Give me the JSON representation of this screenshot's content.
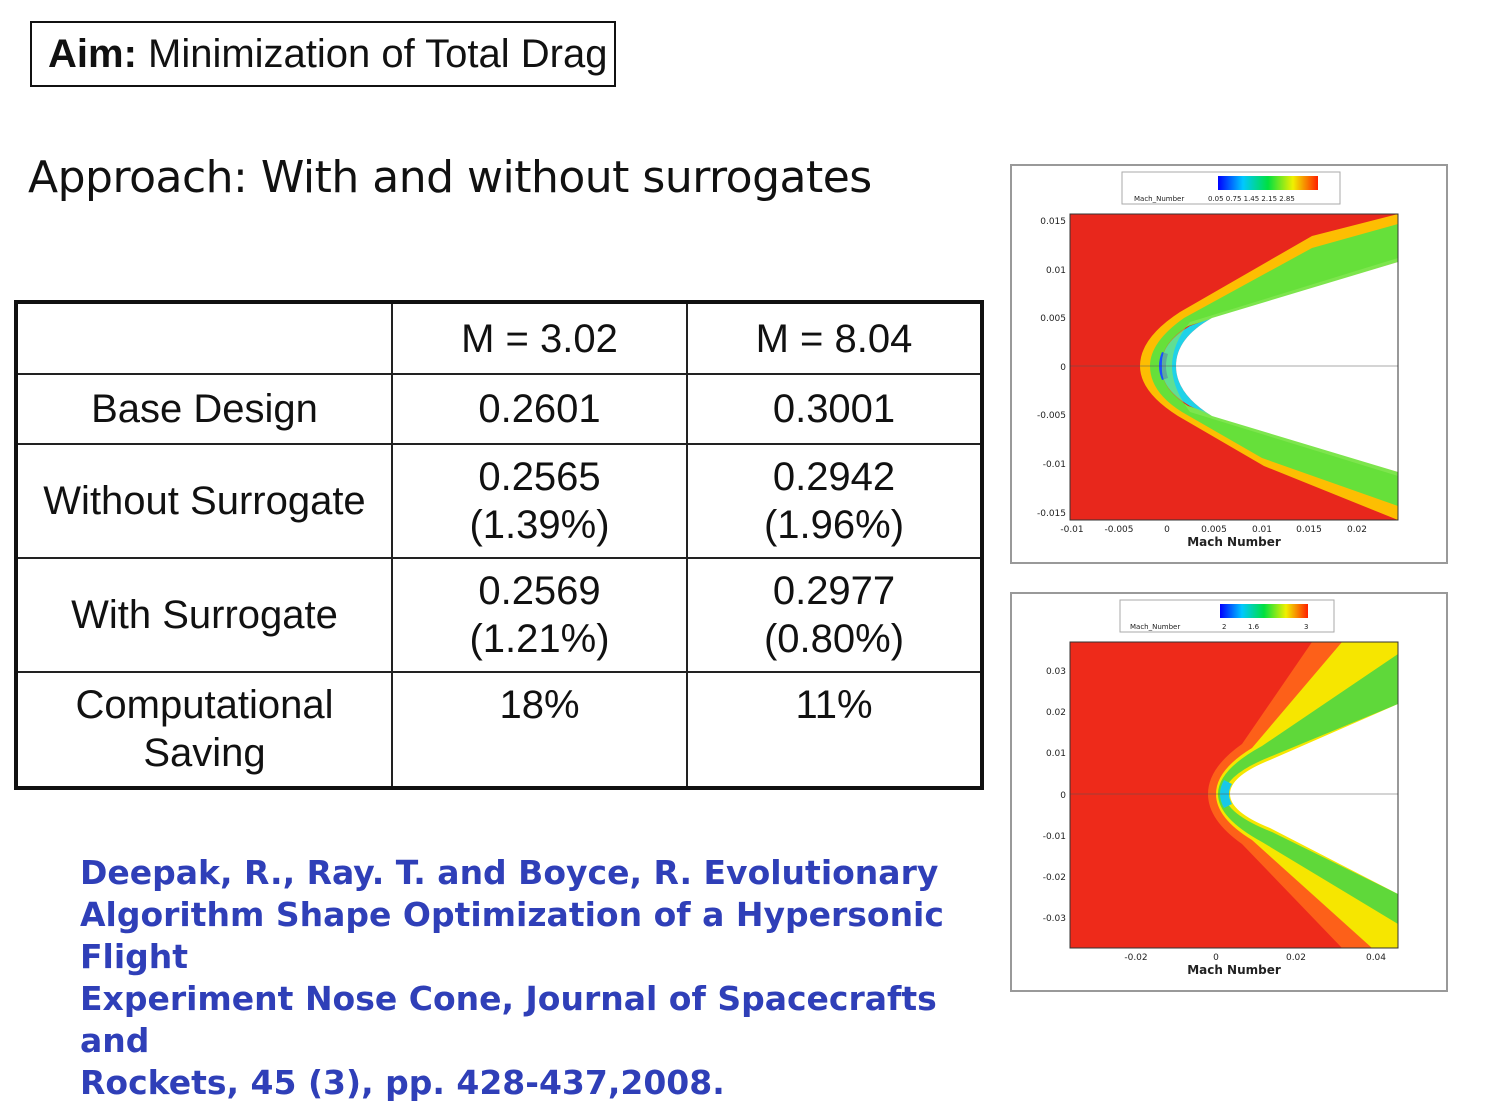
{
  "aim": {
    "label": "Aim:",
    "text": " Minimization of Total Drag"
  },
  "approach": "Approach: With and without surrogates",
  "table": {
    "headers": [
      "",
      "M = 3.02",
      "M = 8.04"
    ],
    "rows": [
      {
        "label": "Base Design",
        "m302": "0.2601",
        "m804": "0.3001"
      },
      {
        "label": "Without Surrogate",
        "m302": "0.2565",
        "m302_pct": "(1.39%)",
        "m804": "0.2942",
        "m804_pct": "(1.96%)"
      },
      {
        "label": "With Surrogate",
        "m302": "0.2569",
        "m302_pct": "(1.21%)",
        "m804": "0.2977",
        "m804_pct": "(0.80%)"
      },
      {
        "label_line1": "Computational",
        "label_line2": "Saving",
        "m302": "18%",
        "m804": "11%"
      }
    ]
  },
  "citation": {
    "line1": "Deepak, R., Ray. T. and Boyce, R. Evolutionary",
    "line2": "Algorithm Shape Optimization of a Hypersonic Flight",
    "line3": "Experiment Nose Cone, Journal of Spacecrafts and",
    "line4": "Rockets, 45 (3), pp. 428-437,2008."
  },
  "plots": [
    {
      "legend_title": "Mach_Number",
      "legend_values": "0.05 0.75 1.45 2.15 2.85",
      "y_ticks": [
        "0.015",
        "0.01",
        "0.005",
        "0",
        "-0.005",
        "-0.01",
        "-0.015"
      ],
      "x_ticks": [
        "-0.01",
        "-0.005",
        "0",
        "0.005",
        "0.01",
        "0.015",
        "0.02"
      ],
      "x_label": "Mach Number"
    },
    {
      "legend_title": "Mach_Number",
      "legend_values": [
        "2",
        "1.6",
        "3"
      ],
      "y_ticks": [
        "0.03",
        "0.02",
        "0.01",
        "0",
        "-0.01",
        "-0.02",
        "-0.03"
      ],
      "x_ticks": [
        "-0.02",
        "0",
        "0.02",
        "0.04"
      ],
      "x_label": "Mach Number"
    }
  ],
  "colors": {
    "citation": "#2f3fb8",
    "field_red": "#e8271c"
  }
}
